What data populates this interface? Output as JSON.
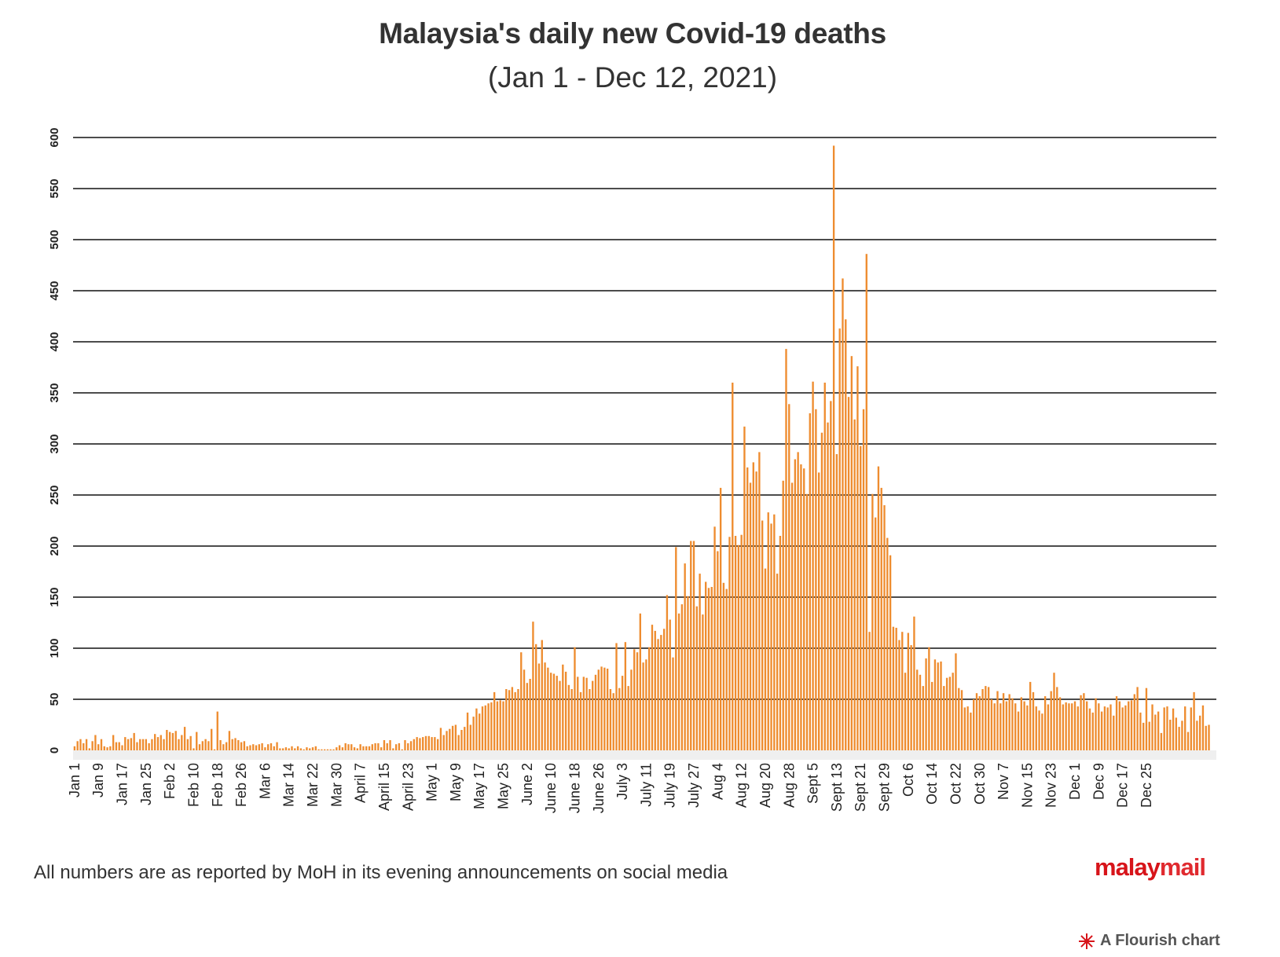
{
  "title": "Malaysia's daily new Covid-19 deaths",
  "subtitle": "(Jan 1 - Dec 12, 2021)",
  "note": "All numbers are as reported by MoH in its evening announcements on social media",
  "logo": {
    "part1": "malay",
    "part2": "mail"
  },
  "credit": "A Flourish chart",
  "colors": {
    "bar": "#ee8c2f",
    "grid": "#111111",
    "text": "#333333",
    "logo": "#d7141a"
  },
  "chart_data": {
    "type": "bar",
    "title": "Malaysia's daily new Covid-19 deaths",
    "subtitle": "(Jan 1 - Dec 12, 2021)",
    "xlabel": "",
    "ylabel": "",
    "ylim": [
      0,
      600
    ],
    "yticks": [
      0,
      50,
      100,
      150,
      200,
      250,
      300,
      350,
      400,
      450,
      500,
      550,
      600
    ],
    "grid": true,
    "x_labels": [
      "Jan 1",
      "Jan 9",
      "Jan 17",
      "Jan 25",
      "Feb 2",
      "Feb 10",
      "Feb 18",
      "Feb 26",
      "Mar 6",
      "Mar 14",
      "Mar 22",
      "Mar 30",
      "April 7",
      "April 15",
      "April 23",
      "May 1",
      "May 9",
      "May 17",
      "May 25",
      "June 2",
      "June 10",
      "June 18",
      "June 26",
      "July 3",
      "July 11",
      "July 19",
      "July 27",
      "Aug 4",
      "Aug 12",
      "Aug 20",
      "Aug 28",
      "Sept 5",
      "Sept 13",
      "Sept 21",
      "Sept 29",
      "Oct 6",
      "Oct 14",
      "Oct 22",
      "Oct 30",
      "Nov 7",
      "Nov 15",
      "Nov 23",
      "Dec 1",
      "Dec 9",
      "Dec 17",
      "Dec 25"
    ],
    "values": [
      4,
      9,
      11,
      7,
      11,
      2,
      9,
      15,
      6,
      11,
      4,
      3,
      4,
      15,
      8,
      8,
      5,
      13,
      11,
      12,
      17,
      8,
      11,
      11,
      11,
      7,
      11,
      16,
      13,
      15,
      11,
      20,
      18,
      17,
      19,
      11,
      15,
      23,
      11,
      14,
      2,
      18,
      6,
      9,
      11,
      9,
      21,
      1,
      38,
      10,
      6,
      8,
      19,
      11,
      12,
      10,
      8,
      9,
      4,
      5,
      6,
      5,
      6,
      7,
      3,
      6,
      7,
      4,
      8,
      2,
      2,
      3,
      2,
      4,
      2,
      4,
      2,
      1,
      3,
      2,
      3,
      4,
      1,
      1,
      1,
      1,
      1,
      1,
      3,
      5,
      3,
      7,
      6,
      6,
      3,
      2,
      6,
      4,
      4,
      4,
      6,
      7,
      7,
      3,
      10,
      7,
      10,
      2,
      6,
      7,
      1,
      10,
      7,
      9,
      11,
      13,
      12,
      13,
      14,
      14,
      13,
      13,
      11,
      22,
      15,
      19,
      21,
      24,
      25,
      15,
      20,
      23,
      37,
      25,
      33,
      41,
      36,
      43,
      44,
      46,
      47,
      57,
      48,
      49,
      48,
      60,
      59,
      62,
      57,
      60,
      96,
      79,
      66,
      70,
      126,
      104,
      85,
      108,
      86,
      81,
      76,
      75,
      73,
      68,
      84,
      77,
      64,
      60,
      101,
      72,
      57,
      72,
      71,
      60,
      68,
      74,
      79,
      82,
      81,
      80,
      60,
      56,
      105,
      61,
      73,
      106,
      63,
      79,
      99,
      96,
      134,
      86,
      89,
      101,
      123,
      117,
      109,
      113,
      119,
      152,
      128,
      91,
      199,
      134,
      143,
      183,
      151,
      205,
      205,
      141,
      173,
      133,
      165,
      159,
      160,
      219,
      195,
      257,
      164,
      158,
      209,
      360,
      210,
      201,
      211,
      317,
      277,
      262,
      282,
      273,
      292,
      225,
      178,
      233,
      222,
      231,
      173,
      210,
      264,
      393,
      339,
      262,
      285,
      292,
      280,
      276,
      251,
      330,
      361,
      334,
      272,
      311,
      360,
      321,
      342,
      592,
      290,
      413,
      462,
      422,
      346,
      386,
      324,
      376,
      298,
      334,
      486,
      116,
      251,
      228,
      278,
      257,
      240,
      208,
      191,
      121,
      120,
      108,
      116,
      76,
      115,
      103,
      131,
      79,
      74,
      63,
      90,
      101,
      67,
      89,
      86,
      87,
      63,
      71,
      72,
      76,
      95,
      61,
      59,
      42,
      43,
      37,
      50,
      56,
      53,
      60,
      63,
      62,
      50,
      46,
      58,
      46,
      56,
      48,
      55,
      51,
      46,
      38,
      52,
      48,
      44,
      67,
      57,
      43,
      39,
      36,
      53,
      45,
      58,
      76,
      62,
      52,
      45,
      47,
      46,
      46,
      48,
      43,
      54,
      56,
      48,
      41,
      37,
      51,
      46,
      38,
      43,
      42,
      45,
      34,
      53,
      48,
      42,
      44,
      48,
      49,
      55,
      62,
      37,
      27,
      61,
      28,
      45,
      35,
      38,
      17,
      42,
      43,
      30,
      41,
      32,
      23,
      29,
      43,
      18,
      42,
      57,
      29,
      34,
      44,
      24,
      25
    ]
  }
}
